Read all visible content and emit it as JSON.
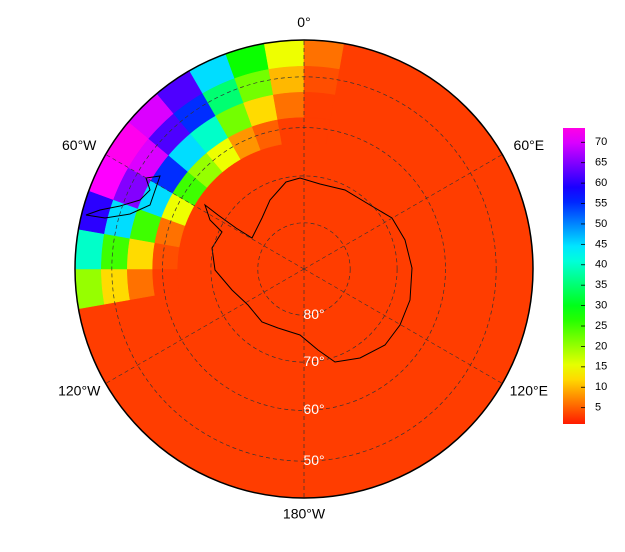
{
  "map": {
    "meridians": [
      {
        "value": 0,
        "label": "0°"
      },
      {
        "value": 60,
        "label": "60°E"
      },
      {
        "value": 120,
        "label": "120°E"
      },
      {
        "value": 180,
        "label": "180°W"
      },
      {
        "value": -120,
        "label": "120°W"
      },
      {
        "value": -60,
        "label": "60°W"
      }
    ],
    "parallels": [
      {
        "value": -80,
        "label": "80°"
      },
      {
        "value": -70,
        "label": "70°"
      },
      {
        "value": -60,
        "label": "60°"
      },
      {
        "value": -50,
        "label": "50°"
      }
    ],
    "boundary_lat": -43,
    "field": {
      "background": 3,
      "lon_edges": [
        -100,
        -90,
        -80,
        -70,
        -60,
        -50,
        -40,
        -30,
        -20,
        -10,
        0,
        10
      ],
      "lat_edges": [
        -43,
        -48,
        -53,
        -58,
        -63
      ],
      "values": [
        [
          20,
          12,
          6,
          3
        ],
        [
          40,
          25,
          12,
          4
        ],
        [
          60,
          45,
          25,
          6
        ],
        [
          72,
          65,
          45,
          15
        ],
        [
          73,
          70,
          55,
          25
        ],
        [
          70,
          62,
          45,
          20
        ],
        [
          62,
          55,
          40,
          15
        ],
        [
          45,
          35,
          22,
          8
        ],
        [
          28,
          22,
          12,
          5
        ],
        [
          15,
          10,
          6,
          3
        ],
        [
          6,
          4,
          3,
          3
        ]
      ]
    },
    "colorbar": {
      "lim": [
        1,
        73.5
      ],
      "ticks": [
        5,
        10,
        15,
        20,
        25,
        30,
        35,
        40,
        45,
        50,
        55,
        60,
        65,
        70
      ]
    }
  }
}
